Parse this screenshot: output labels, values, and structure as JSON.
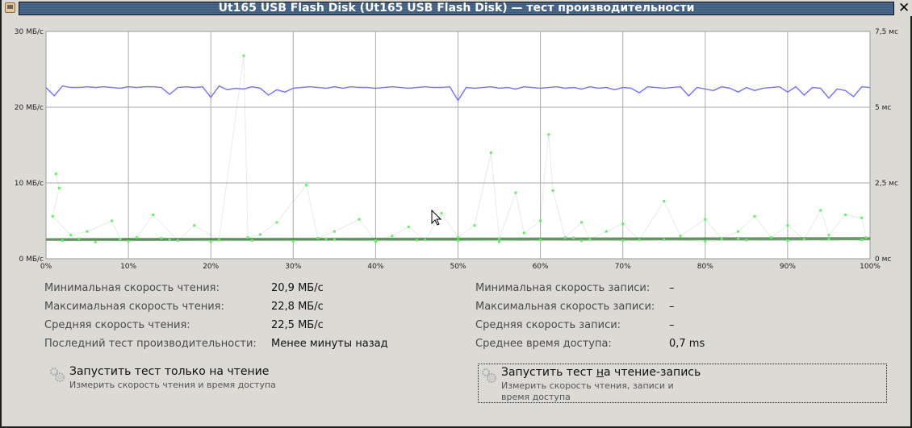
{
  "window": {
    "title": "Ut165 USB Flash Disk (Ut165 USB Flash Disk) — тест производительности"
  },
  "chart_data": {
    "type": "line",
    "xlim": [
      0,
      100
    ],
    "x_ticks": [
      "0%",
      "10%",
      "20%",
      "30%",
      "40%",
      "50%",
      "60%",
      "70%",
      "80%",
      "90%",
      "100%"
    ],
    "y_left": {
      "range": [
        0,
        30
      ],
      "ticks": [
        "0 МБ/с",
        "10 МБ/с",
        "20 МБ/с",
        "30 МБ/с"
      ]
    },
    "y_right": {
      "range": [
        0,
        7.5
      ],
      "ticks": [
        "0 мс",
        "2,5 мс",
        "5 мс",
        "7,5 мс"
      ]
    },
    "grid": true,
    "colors": {
      "read": "#7777ff",
      "access": "#66ee66",
      "access_line": "#2a6a2a"
    },
    "read_speed": [
      22.6,
      21.5,
      22.8,
      22.6,
      22.6,
      22.7,
      22.6,
      22.7,
      22.6,
      22.5,
      22.7,
      22.6,
      22.7,
      22.7,
      22.6,
      21.7,
      22.6,
      22.7,
      22.6,
      22.7,
      21.3,
      22.8,
      22.3,
      22.5,
      22.4,
      22.7,
      22.5,
      21.6,
      22.3,
      22.0,
      22.5,
      22.6,
      22.7,
      22.6,
      22.5,
      22.7,
      22.5,
      22.7,
      22.6,
      22.6,
      22.5,
      22.6,
      22.7,
      22.6,
      22.5,
      22.6,
      22.7,
      22.6,
      22.6,
      22.7,
      20.9,
      22.6,
      22.5,
      22.6,
      22.7,
      22.5,
      22.6,
      22.4,
      22.7,
      22.6,
      22.5,
      22.6,
      22.7,
      22.5,
      22.6,
      22.4,
      22.7,
      22.5,
      22.6,
      22.3,
      22.6,
      22.5,
      21.9,
      22.7,
      22.6,
      22.5,
      22.6,
      22.7,
      21.5,
      22.6,
      22.4,
      22.2,
      22.7,
      22.5,
      22.0,
      22.6,
      22.2,
      22.5,
      22.6,
      22.7,
      22.0,
      22.7,
      21.6,
      22.6,
      22.5,
      21.2,
      22.4,
      22.2,
      21.4,
      22.7,
      22.6
    ],
    "access_time": [
      [
        1.2,
        2.8
      ],
      [
        1.6,
        2.33
      ],
      [
        0.8,
        1.4
      ],
      [
        3,
        0.78
      ],
      [
        5,
        0.9
      ],
      [
        8,
        1.25
      ],
      [
        9,
        0.65
      ],
      [
        11,
        0.7
      ],
      [
        13,
        1.45
      ],
      [
        16,
        0.6
      ],
      [
        18,
        1.1
      ],
      [
        21,
        0.62
      ],
      [
        24,
        6.7
      ],
      [
        24.5,
        0.7
      ],
      [
        26,
        0.8
      ],
      [
        28,
        1.2
      ],
      [
        31.6,
        2.43
      ],
      [
        33,
        0.68
      ],
      [
        35,
        0.9
      ],
      [
        38,
        1.3
      ],
      [
        40,
        0.6
      ],
      [
        42,
        0.75
      ],
      [
        44,
        1.05
      ],
      [
        46,
        0.62
      ],
      [
        48,
        1.5
      ],
      [
        50,
        0.7
      ],
      [
        52,
        1.1
      ],
      [
        54,
        3.5
      ],
      [
        55,
        0.66
      ],
      [
        57,
        2.18
      ],
      [
        58,
        0.85
      ],
      [
        60,
        1.25
      ],
      [
        61,
        4.1
      ],
      [
        61.5,
        2.25
      ],
      [
        63,
        0.7
      ],
      [
        65,
        1.2
      ],
      [
        66,
        0.64
      ],
      [
        68,
        0.9
      ],
      [
        70,
        1.15
      ],
      [
        72,
        0.62
      ],
      [
        75,
        1.9
      ],
      [
        77,
        0.75
      ],
      [
        80,
        1.3
      ],
      [
        82,
        0.66
      ],
      [
        84,
        0.9
      ],
      [
        86,
        1.4
      ],
      [
        88,
        0.7
      ],
      [
        90,
        1.1
      ],
      [
        92,
        0.64
      ],
      [
        94,
        1.6
      ],
      [
        95,
        0.78
      ],
      [
        97,
        1.45
      ],
      [
        99,
        1.35
      ],
      [
        99.5,
        0.7
      ],
      [
        2,
        0.6
      ],
      [
        6,
        0.55
      ],
      [
        10,
        0.58
      ],
      [
        15,
        0.62
      ],
      [
        20,
        0.57
      ],
      [
        25,
        0.6
      ],
      [
        30,
        0.58
      ],
      [
        35,
        0.63
      ],
      [
        40,
        0.57
      ],
      [
        45,
        0.61
      ],
      [
        50,
        0.6
      ],
      [
        55,
        0.56
      ],
      [
        60,
        0.62
      ],
      [
        65,
        0.59
      ],
      [
        70,
        0.6
      ],
      [
        75,
        0.63
      ],
      [
        80,
        0.58
      ],
      [
        85,
        0.61
      ],
      [
        90,
        0.6
      ],
      [
        95,
        0.64
      ],
      [
        99,
        0.62
      ],
      [
        4,
        0.66
      ],
      [
        14,
        0.68
      ],
      [
        34,
        0.66
      ],
      [
        64,
        0.69
      ],
      [
        84,
        0.67
      ]
    ]
  },
  "stats": {
    "left": [
      {
        "label": "Минимальная скорость чтения:",
        "value": "20,9 МБ/с"
      },
      {
        "label": "Максимальная скорость чтения:",
        "value": "22,8 МБ/с"
      },
      {
        "label": "Средняя скорость чтения:",
        "value": "22,5 МБ/с"
      },
      {
        "label": "Последний тест производительности:",
        "value": "Менее минуты назад"
      }
    ],
    "right": [
      {
        "label": "Минимальная скорость записи:",
        "value": "–"
      },
      {
        "label": "Максимальная скорость записи:",
        "value": "–"
      },
      {
        "label": "Средняя скорость записи:",
        "value": "–"
      },
      {
        "label": "Среднее время доступа:",
        "value": "0,7 ms"
      }
    ]
  },
  "buttons": {
    "read_only": {
      "title": "Запустить тест только на чтение",
      "desc": "Измерить скорость чтения и время доступа",
      "icon": "gears-icon"
    },
    "read_write": {
      "title_pre": "Запустить тест ",
      "title_mn": "н",
      "title_post": "а чтение-запись",
      "desc": "Измерить скорость чтения, записи и время доступа",
      "icon": "gears-icon"
    }
  }
}
